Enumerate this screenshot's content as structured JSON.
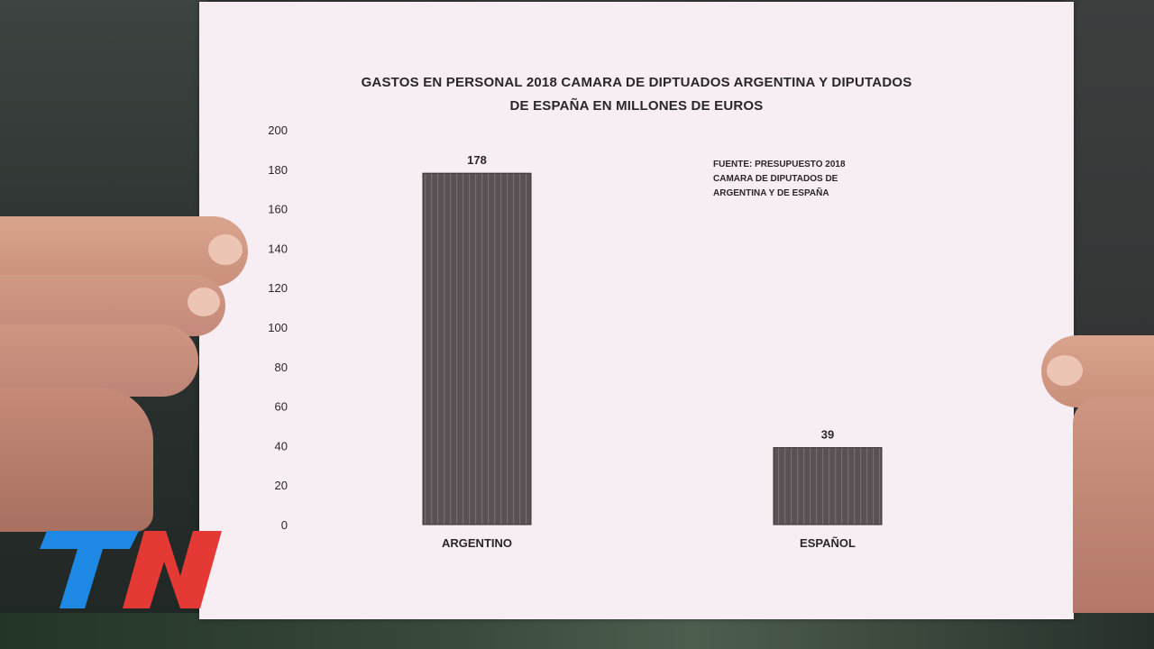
{
  "broadcast": {
    "logo_text": "TN",
    "logo_colors": {
      "t": "#1e88e5",
      "n": "#e53935"
    }
  },
  "chart_data": {
    "type": "bar",
    "title": "GASTOS EN PERSONAL 2018 CAMARA DE DIPTUADOS ARGENTINA Y DIPUTADOS\nDE ESPAÑA EN MILLONES DE EUROS",
    "categories": [
      "ARGENTINO",
      "ESPAÑOL"
    ],
    "values": [
      178,
      39
    ],
    "data_labels": [
      "178",
      "39"
    ],
    "ylim": [
      0,
      200
    ],
    "yticks": [
      0,
      20,
      40,
      60,
      80,
      100,
      120,
      140,
      160,
      180,
      200
    ],
    "xlabel": "",
    "ylabel": "",
    "grid": false,
    "bar_color": "#5a5154",
    "annotation": "FUENTE: PRESUPUESTO 2018\nCAMARA DE DIPUTADOS DE\nARGENTINA Y DE ESPAÑA"
  }
}
